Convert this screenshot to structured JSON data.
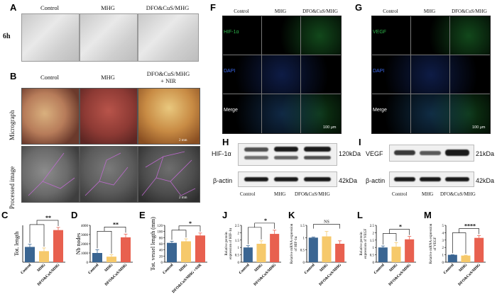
{
  "panels": {
    "A": {
      "label": "A",
      "cols": [
        "Control",
        "MHG",
        "DFO&CuS/MHG"
      ],
      "row": "6h"
    },
    "B": {
      "label": "B",
      "cols": [
        "Control",
        "MHG",
        "DFO&CuS/MHG",
        "+ NIR"
      ],
      "rows": [
        "Micrograph",
        "Processed image"
      ],
      "scale": "2 mm"
    },
    "F": {
      "label": "F",
      "cols": [
        "Control",
        "MHG",
        "DFO&CuS/MHG"
      ],
      "rows": [
        "HIF-1α",
        "DAPI",
        "Merge"
      ],
      "scale": "100 μm"
    },
    "G": {
      "label": "G",
      "cols": [
        "Control",
        "MHG",
        "DFO&CuS/MHG"
      ],
      "rows": [
        "VEGF",
        "DAPI",
        "Merge"
      ],
      "scale": "100 μm"
    },
    "H": {
      "label": "H",
      "rows": [
        "HIF-1α",
        "β-actin"
      ],
      "sizes": [
        "120kDa",
        "42kDa"
      ],
      "cols": [
        "Control",
        "MHG",
        "DFO&CuS/MHG"
      ]
    },
    "I": {
      "label": "I",
      "rows": [
        "VEGF",
        "β-actin"
      ],
      "sizes": [
        "21kDa",
        "42kDa"
      ],
      "cols": [
        "Control",
        "MHG",
        "DFO&CuS/MHG"
      ]
    }
  },
  "colors": {
    "control": "#3a6592",
    "mhg": "#f6c96b",
    "dfo": "#e8604f",
    "green": "#2db34a",
    "blue": "#2f5bd6"
  },
  "chart_data": [
    {
      "id": "C",
      "type": "bar",
      "categories": [
        "Control",
        "MHG",
        "DFO&CuS/MHG"
      ],
      "values": [
        29,
        21,
        61
      ],
      "errors": [
        5,
        6,
        5
      ],
      "ylabel": "Tot. length",
      "ylim": [
        0,
        70
      ],
      "yticks": [],
      "sig": "**"
    },
    {
      "id": "D",
      "type": "bar",
      "categories": [
        "Control",
        "MHG",
        "DFO&CuS/MHG"
      ],
      "values": [
        1000,
        600,
        2700
      ],
      "errors": [
        350,
        200,
        350
      ],
      "ylabel": "Nb nodes",
      "ylim": [
        0,
        4000
      ],
      "yticks": [
        0,
        1000,
        2000,
        3000,
        4000
      ],
      "sig": "**"
    },
    {
      "id": "E",
      "type": "bar",
      "categories": [
        "Control",
        "MHG",
        "DFO&CuS/MHG +NIR"
      ],
      "values": [
        63,
        68,
        87
      ],
      "errors": [
        5,
        8,
        8
      ],
      "ylabel": "Tot. vessel length (mm)",
      "ylim": [
        0,
        120
      ],
      "yticks": [
        0,
        20,
        40,
        60,
        80,
        100,
        120
      ],
      "sig": "*"
    },
    {
      "id": "J",
      "type": "bar",
      "categories": [
        "Control",
        "MHG",
        "DFO&CuS/MHG"
      ],
      "values": [
        1.0,
        1.25,
        1.92
      ],
      "errors": [
        0.12,
        0.2,
        0.25
      ],
      "ylabel": "Relative protein expression of HIF-1α",
      "ylim": [
        0,
        2.5
      ],
      "yticks": [
        0,
        0.5,
        1,
        1.5,
        2,
        2.5
      ],
      "sig": "*"
    },
    {
      "id": "K",
      "type": "bar",
      "categories": [
        "Control",
        "MHG",
        "DFO&CuS/MHG"
      ],
      "values": [
        1.0,
        1.05,
        0.75
      ],
      "errors": [
        0.02,
        0.2,
        0.12
      ],
      "ylabel": "Relative mRNA expression of HIF-1α",
      "ylim": [
        0,
        1.5
      ],
      "yticks": [
        0,
        0.5,
        1,
        1.5
      ],
      "sig": "NS"
    },
    {
      "id": "L",
      "type": "bar",
      "categories": [
        "Control",
        "MHG",
        "DFO&CuS/MHG"
      ],
      "values": [
        1.0,
        1.05,
        1.55
      ],
      "errors": [
        0.1,
        0.28,
        0.2
      ],
      "ylabel": "Relative protein expression of VEGF",
      "ylim": [
        0,
        2.5
      ],
      "yticks": [
        0,
        0.5,
        1,
        1.5,
        2,
        2.5
      ],
      "sig": "*"
    },
    {
      "id": "M",
      "type": "bar",
      "categories": [
        "Control",
        "MHG",
        "DFO&CuS/MHG"
      ],
      "values": [
        1.0,
        0.9,
        3.3
      ],
      "errors": [
        0.02,
        0.05,
        0.3
      ],
      "ylabel": "Relative mRNA expression of VEGF",
      "ylim": [
        0,
        5
      ],
      "yticks": [
        0,
        1,
        2,
        3,
        4,
        5
      ],
      "sig": "****"
    }
  ]
}
